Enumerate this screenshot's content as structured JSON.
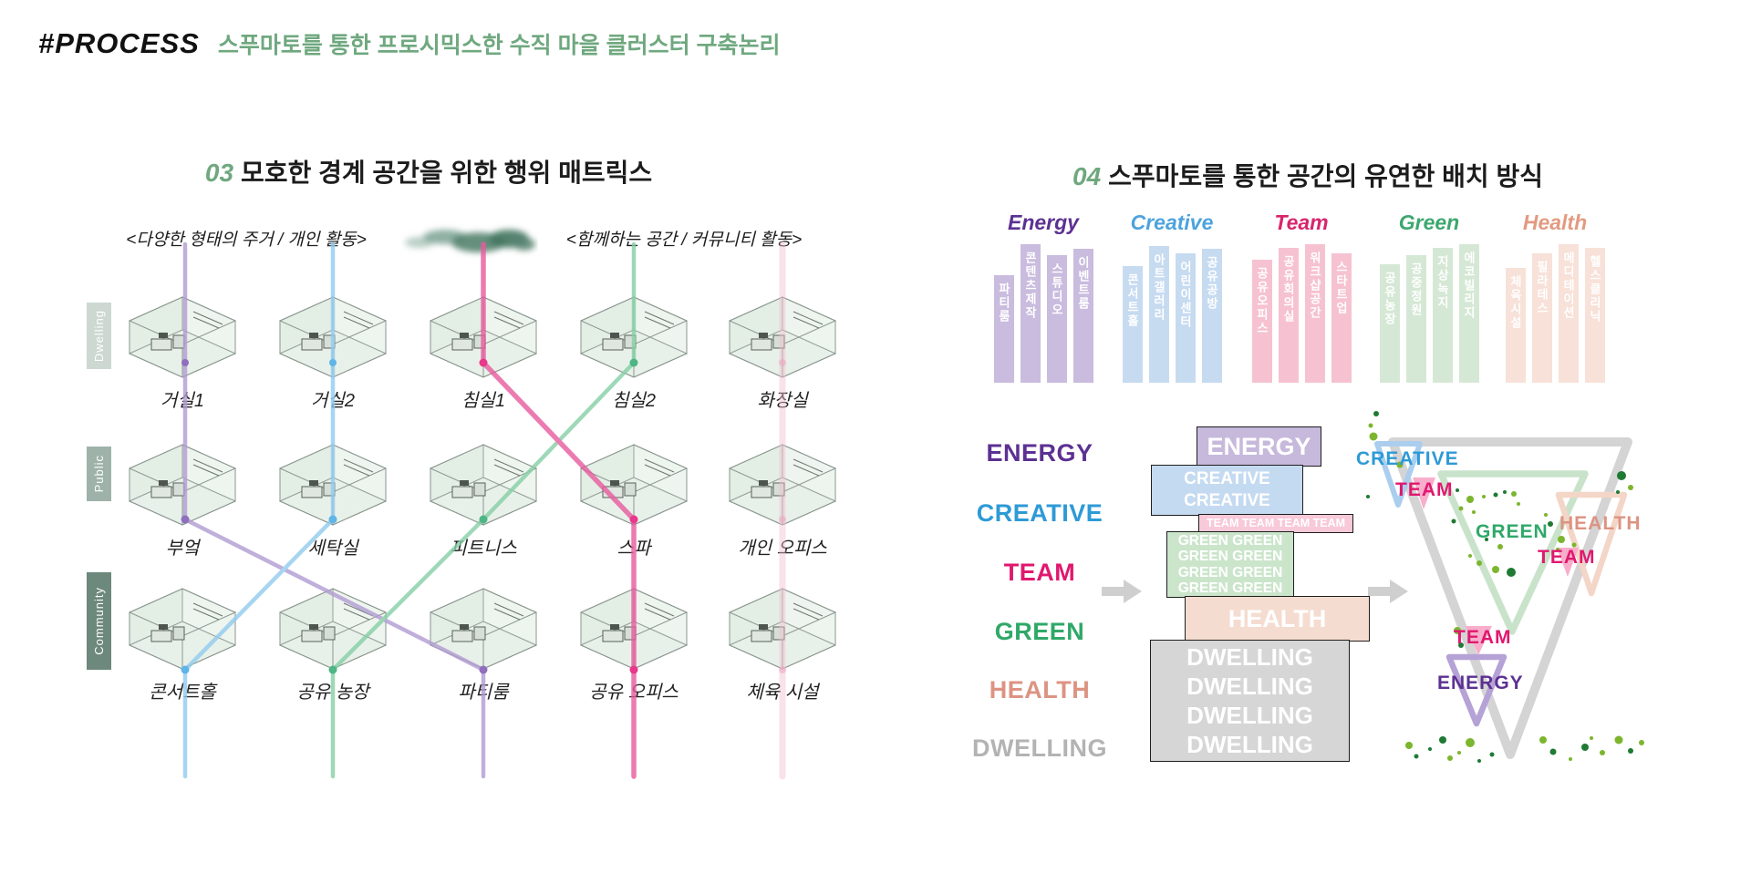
{
  "header": {
    "hash_title": "#PROCESS",
    "subtitle": "스푸마토를 통한 프로시믹스한 수직 마을 클러스터 구축논리",
    "accent_green": "#6fa87f"
  },
  "section03": {
    "number": "03",
    "title": "모호한 경계 공간을 위한 행위 매트릭스",
    "caption_left": "<다양한 형태의 주거 / 개인 활동>",
    "caption_right": "<함께하는 공간 / 커뮤니티 활동>",
    "row_groups": [
      {
        "label": "Dwelling",
        "color": "#cdd8d2"
      },
      {
        "label": "Public",
        "color": "#9eb2aa"
      },
      {
        "label": "Community",
        "color": "#6d887c"
      }
    ],
    "rooms": [
      {
        "group": "Dwelling",
        "name": "거실1"
      },
      {
        "group": "Dwelling",
        "name": "거실2"
      },
      {
        "group": "Dwelling",
        "name": "침실1"
      },
      {
        "group": "Dwelling",
        "name": "침실2"
      },
      {
        "group": "Dwelling",
        "name": "화장실"
      },
      {
        "group": "Public",
        "name": "부엌"
      },
      {
        "group": "Public",
        "name": "세탁실"
      },
      {
        "group": "Public",
        "name": "피트니스"
      },
      {
        "group": "Public",
        "name": "스파"
      },
      {
        "group": "Public",
        "name": "개인 오피스"
      },
      {
        "group": "Community",
        "name": "콘서트홀"
      },
      {
        "group": "Community",
        "name": "공유 농장"
      },
      {
        "group": "Community",
        "name": "파티룸"
      },
      {
        "group": "Community",
        "name": "공유 오피스"
      },
      {
        "group": "Community",
        "name": "체육 시설"
      }
    ],
    "line_colors": {
      "purple": "#b19bd2",
      "blue": "#92cbee",
      "magenta": "#e75b9e",
      "green": "#85cfa6",
      "pink": "#f3bed0"
    },
    "dot_colors": {
      "purple": "#8f6fbe",
      "blue": "#5fb4e8",
      "magenta": "#e8388b",
      "green": "#4eb584",
      "pink": "#eda9c4"
    }
  },
  "section04": {
    "number": "04",
    "title": "스푸마토를 통한 공간의 유연한 배치 방식",
    "categories": [
      {
        "name": "Energy",
        "color": "#5c3192",
        "bar_color": "#c9bcde",
        "items": [
          "파티룸",
          "콘텐츠제작",
          "스튜디오",
          "이벤트룸"
        ]
      },
      {
        "name": "Creative",
        "color": "#4da3dd",
        "bar_color": "#c6dbf0",
        "items": [
          "콘서트홀",
          "아트갤러리",
          "어린이센터",
          "공유공방"
        ]
      },
      {
        "name": "Team",
        "color": "#d7256d",
        "bar_color": "#f6c2d2",
        "items": [
          "공유오피스",
          "공유회의실",
          "워크샵공간",
          "스타트업"
        ]
      },
      {
        "name": "Green",
        "color": "#3da76e",
        "bar_color": "#d5e8d5",
        "items": [
          "공유농장",
          "공중정원",
          "지상녹지",
          "에코빌리지"
        ]
      },
      {
        "name": "Health",
        "color": "#e39a81",
        "bar_color": "#f7e1d8",
        "items": [
          "체육시설",
          "필라테스",
          "메디테이션",
          "헬스클리닉"
        ]
      }
    ],
    "stack_labels": [
      {
        "text": "ENERGY",
        "color": "#5c3192"
      },
      {
        "text": "CREATIVE",
        "color": "#2e9ad6"
      },
      {
        "text": "TEAM",
        "color": "#e0186f"
      },
      {
        "text": "GREEN",
        "color": "#2fa868"
      },
      {
        "text": "HEALTH",
        "color": "#dd9383"
      },
      {
        "text": "DWELLING",
        "color": "#b3b3b3"
      }
    ],
    "tower": [
      {
        "name": "ENERGY",
        "color": "#c7b9dc",
        "lines": [
          "ENERGY"
        ]
      },
      {
        "name": "CREATIVE",
        "color": "#c4daf0",
        "lines": [
          "CREATIVE",
          "CREATIVE"
        ]
      },
      {
        "name": "TEAM",
        "color": "#f8c9d8",
        "lines": [
          "TEAM TEAM TEAM TEAM"
        ]
      },
      {
        "name": "GREEN",
        "color": "#cbe5cb",
        "lines": [
          "GREEN GREEN",
          "GREEN GREEN",
          "GREEN GREEN",
          "GREEN GREEN"
        ]
      },
      {
        "name": "HEALTH",
        "color": "#f5dcd0",
        "lines": [
          "HEALTH"
        ]
      },
      {
        "name": "DWELLING",
        "color": "#d6d6d6",
        "lines": [
          "DWELLING",
          "DWELLING",
          "DWELLING",
          "DWELLING"
        ]
      }
    ],
    "triangle_labels": [
      {
        "text": "CREATIVE",
        "color": "#2e9ad6"
      },
      {
        "text": "TEAM",
        "color": "#e0186f"
      },
      {
        "text": "GREEN",
        "color": "#2fa868"
      },
      {
        "text": "HEALTH",
        "color": "#dd9383"
      },
      {
        "text": "TEAM",
        "color": "#e0186f"
      },
      {
        "text": "TEAM",
        "color": "#e0186f"
      },
      {
        "text": "ENERGY",
        "color": "#5c3192"
      }
    ]
  }
}
